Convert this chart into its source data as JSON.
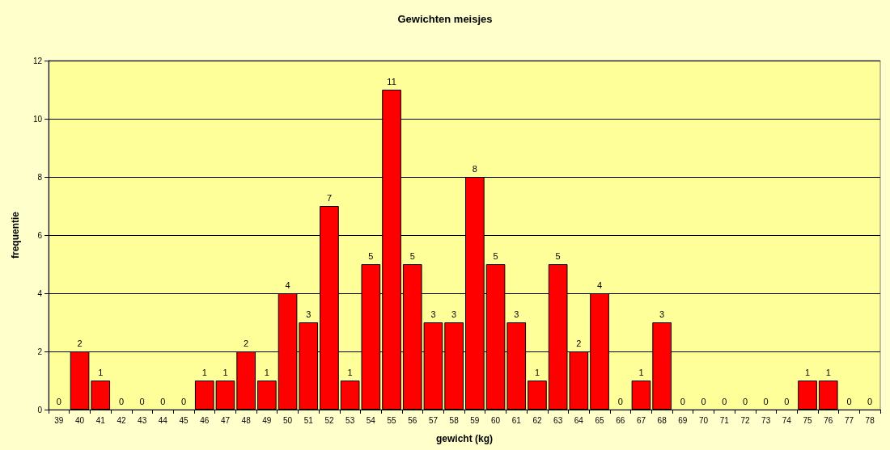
{
  "chart_data": {
    "type": "bar",
    "title": "Gewichten meisjes",
    "xlabel": "gewicht (kg)",
    "ylabel": "frequentie",
    "categories": [
      "39",
      "40",
      "41",
      "42",
      "43",
      "44",
      "45",
      "46",
      "47",
      "48",
      "49",
      "50",
      "51",
      "52",
      "53",
      "54",
      "55",
      "56",
      "57",
      "58",
      "59",
      "60",
      "61",
      "62",
      "63",
      "64",
      "65",
      "66",
      "67",
      "68",
      "69",
      "70",
      "71",
      "72",
      "73",
      "74",
      "75",
      "76",
      "77",
      "78"
    ],
    "values": [
      0,
      2,
      1,
      0,
      0,
      0,
      0,
      1,
      1,
      2,
      1,
      4,
      3,
      7,
      1,
      5,
      11,
      5,
      3,
      3,
      8,
      5,
      3,
      1,
      5,
      2,
      4,
      0,
      1,
      3,
      0,
      0,
      0,
      0,
      0,
      0,
      1,
      1,
      0,
      0
    ],
    "color": "#ff0000",
    "ylim": [
      0,
      12
    ],
    "yticks": [
      0,
      2,
      4,
      6,
      8,
      10,
      12
    ],
    "grid": "y",
    "data_labels": true
  }
}
